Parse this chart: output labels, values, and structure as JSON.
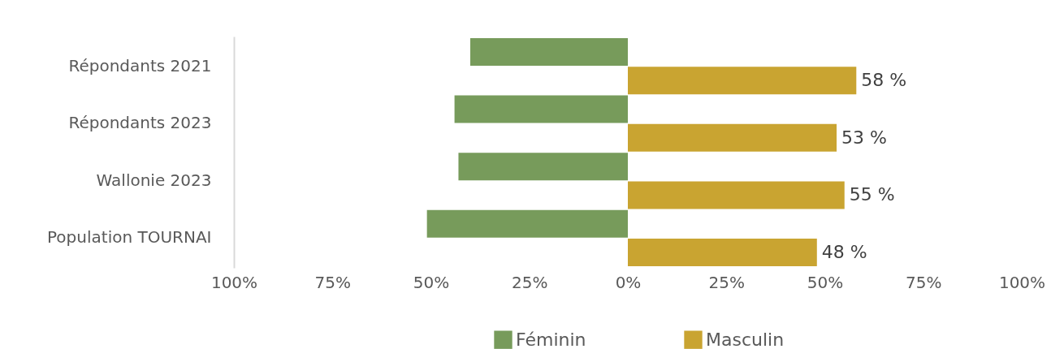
{
  "chart_data": {
    "type": "bar",
    "orientation": "horizontal",
    "categories": [
      "Répondants 2021",
      "Répondants 2023",
      "Wallonie 2023",
      "Population TOURNAI"
    ],
    "series": [
      {
        "name": "Féminin",
        "color": "#779b5b",
        "values": [
          -40,
          -44,
          -43,
          -51
        ]
      },
      {
        "name": "Masculin",
        "color": "#c9a431",
        "values": [
          58,
          53,
          55,
          48
        ],
        "value_labels": [
          "58 %",
          "53 %",
          "55 %",
          "48 %"
        ]
      }
    ],
    "xlim": [
      -100,
      100
    ],
    "xticks": [
      {
        "value": -100,
        "label": "100%"
      },
      {
        "value": -75,
        "label": "75%"
      },
      {
        "value": -50,
        "label": "50%"
      },
      {
        "value": -25,
        "label": "25%"
      },
      {
        "value": 0,
        "label": "0%"
      },
      {
        "value": 25,
        "label": "25%"
      },
      {
        "value": 50,
        "label": "50%"
      },
      {
        "value": 75,
        "label": "75%"
      },
      {
        "value": 100,
        "label": "100%"
      }
    ],
    "grid": false,
    "legend": "bottom"
  }
}
